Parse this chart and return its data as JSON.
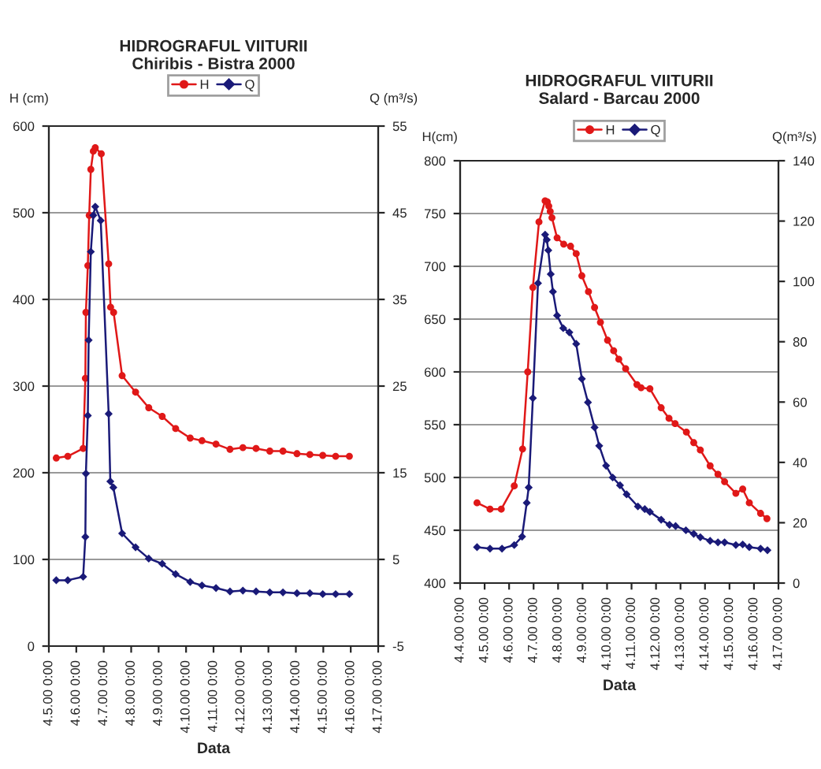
{
  "chart_data": [
    {
      "type": "line",
      "title": "HIDROGRAFUL VIITURII",
      "subtitle": "Chiribis - Bistra 2000",
      "xlabel": "Data",
      "ylabel": "H (cm)",
      "y2label": "Q (m³/s)",
      "xlim": [
        "2000-04-05T00:00",
        "2000-04-17T00:00"
      ],
      "xticks": [
        {
          "value": "2000-04-05T00:00",
          "label": "4.5.00 0:00"
        },
        {
          "value": "2000-04-06T00:00",
          "label": "4.6.00 0:00"
        },
        {
          "value": "2000-04-07T00:00",
          "label": "4.7.00 0:00"
        },
        {
          "value": "2000-04-08T00:00",
          "label": "4.8.00 0:00"
        },
        {
          "value": "2000-04-09T00:00",
          "label": "4.9.00 0:00"
        },
        {
          "value": "2000-04-10T00:00",
          "label": "4.10.00 0:00"
        },
        {
          "value": "2000-04-11T00:00",
          "label": "4.11.00 0:00"
        },
        {
          "value": "2000-04-12T00:00",
          "label": "4.12.00 0:00"
        },
        {
          "value": "2000-04-13T00:00",
          "label": "4.13.00 0:00"
        },
        {
          "value": "2000-04-14T00:00",
          "label": "4.14.00 0:00"
        },
        {
          "value": "2000-04-15T00:00",
          "label": "4.15.00 0:00"
        },
        {
          "value": "2000-04-16T00:00",
          "label": "4.16.00 0:00"
        },
        {
          "value": "2000-04-17T00:00",
          "label": "4.17.00 0:00"
        }
      ],
      "ylim": [
        0,
        600
      ],
      "yticks": [
        0,
        100,
        200,
        300,
        400,
        500,
        600
      ],
      "y2lim": [
        -5,
        55
      ],
      "y2ticks": [
        -5,
        5,
        15,
        25,
        35,
        45,
        55
      ],
      "grid": "y",
      "legend": "top",
      "line_style": "solid",
      "series": [
        {
          "name": "H",
          "color": "#e01818",
          "marker": "circle",
          "x": [
            "2000-04-05T06:29",
            "2000-04-05T16:34",
            "2000-04-06T06:00",
            "2000-04-06T07:55",
            "2000-04-06T08:24",
            "2000-04-06T10:05",
            "2000-04-06T11:17",
            "2000-04-06T12:43",
            "2000-04-06T14:53",
            "2000-04-06T16:34",
            "2000-04-06T21:50",
            "2000-04-07T04:19",
            "2000-04-07T06:00",
            "2000-04-07T08:38",
            "2000-04-07T16:05",
            "2000-04-08T03:50",
            "2000-04-08T15:22",
            "2000-04-09T03:07",
            "2000-04-09T14:53",
            "2000-04-10T03:36",
            "2000-04-10T13:55",
            "2000-04-11T02:10",
            "2000-04-11T14:24",
            "2000-04-12T01:41",
            "2000-04-12T13:12",
            "2000-04-13T01:12",
            "2000-04-13T12:43",
            "2000-04-14T00:58",
            "2000-04-14T12:14",
            "2000-04-14T23:31",
            "2000-04-15T10:48",
            "2000-04-15T22:48"
          ],
          "values": [
            217,
            219,
            228,
            309,
            385,
            439,
            497,
            550,
            571,
            575,
            568,
            441,
            391,
            385,
            312,
            293,
            275,
            265,
            251,
            240,
            237,
            233,
            227,
            229,
            228,
            225,
            225,
            222,
            221,
            220,
            219,
            219
          ]
        },
        {
          "name": "Q",
          "color": "#1a1a78",
          "marker": "diamond",
          "axis": "y2",
          "x": [
            "2000-04-05T06:29",
            "2000-04-05T16:34",
            "2000-04-06T06:00",
            "2000-04-06T07:55",
            "2000-04-06T08:24",
            "2000-04-06T10:05",
            "2000-04-06T10:48",
            "2000-04-06T12:43",
            "2000-04-06T14:53",
            "2000-04-06T16:34",
            "2000-04-06T21:22",
            "2000-04-07T04:19",
            "2000-04-07T05:46",
            "2000-04-07T08:24",
            "2000-04-07T16:05",
            "2000-04-08T03:50",
            "2000-04-08T15:22",
            "2000-04-09T03:07",
            "2000-04-09T14:53",
            "2000-04-10T03:36",
            "2000-04-10T13:55",
            "2000-04-11T02:10",
            "2000-04-11T14:24",
            "2000-04-12T01:41",
            "2000-04-12T13:12",
            "2000-04-13T01:12",
            "2000-04-13T12:43",
            "2000-04-14T00:58",
            "2000-04-14T12:14",
            "2000-04-14T23:31",
            "2000-04-15T10:48",
            "2000-04-15T22:48"
          ],
          "values": [
            2.6,
            2.6,
            3.0,
            7.6,
            14.9,
            21.6,
            30.3,
            40.5,
            44.7,
            45.7,
            44.1,
            21.8,
            14.0,
            13.3,
            8.0,
            6.4,
            5.1,
            4.5,
            3.3,
            2.4,
            2.0,
            1.7,
            1.3,
            1.4,
            1.3,
            1.2,
            1.2,
            1.1,
            1.1,
            1.0,
            1.0,
            1.0
          ]
        }
      ]
    },
    {
      "type": "line",
      "title": "HIDROGRAFUL VIITURII",
      "subtitle": "Salard - Barcau 2000",
      "xlabel": "Data",
      "ylabel": "H(cm)",
      "y2label": "Q(m³/s)",
      "xlim": [
        "2000-04-04T00:00",
        "2000-04-17T00:00"
      ],
      "xticks": [
        {
          "value": "2000-04-04T00:00",
          "label": "4.4.00 0:00"
        },
        {
          "value": "2000-04-05T00:00",
          "label": "4.5.00 0:00"
        },
        {
          "value": "2000-04-06T00:00",
          "label": "4.6.00 0:00"
        },
        {
          "value": "2000-04-07T00:00",
          "label": "4.7.00 0:00"
        },
        {
          "value": "2000-04-08T00:00",
          "label": "4.8.00 0:00"
        },
        {
          "value": "2000-04-09T00:00",
          "label": "4.9.00 0:00"
        },
        {
          "value": "2000-04-10T00:00",
          "label": "4.10.00 0:00"
        },
        {
          "value": "2000-04-11T00:00",
          "label": "4.11.00 0:00"
        },
        {
          "value": "2000-04-12T00:00",
          "label": "4.12.00 0:00"
        },
        {
          "value": "2000-04-13T00:00",
          "label": "4.13.00 0:00"
        },
        {
          "value": "2000-04-14T00:00",
          "label": "4.14.00 0:00"
        },
        {
          "value": "2000-04-15T00:00",
          "label": "4.15.00 0:00"
        },
        {
          "value": "2000-04-16T00:00",
          "label": "4.16.00 0:00"
        },
        {
          "value": "2000-04-17T00:00",
          "label": "4.17.00 0:00"
        }
      ],
      "ylim": [
        400,
        800
      ],
      "yticks": [
        400,
        450,
        500,
        550,
        600,
        650,
        700,
        750,
        800
      ],
      "y2lim": [
        0,
        140
      ],
      "y2ticks": [
        0,
        20,
        40,
        60,
        80,
        100,
        120,
        140
      ],
      "grid": "y",
      "legend": "top",
      "line_style": "solid",
      "series": [
        {
          "name": "H",
          "color": "#e01818",
          "marker": "circle",
          "x": [
            "2000-04-04T16:34",
            "2000-04-05T05:17",
            "2000-04-05T16:19",
            "2000-04-06T05:02",
            "2000-04-06T13:12",
            "2000-04-06T18:14",
            "2000-04-06T23:17",
            "2000-04-07T05:17",
            "2000-04-07T11:17",
            "2000-04-07T13:26",
            "2000-04-07T14:53",
            "2000-04-07T16:19",
            "2000-04-07T18:00",
            "2000-04-07T23:02",
            "2000-04-08T05:31",
            "2000-04-08T12:14",
            "2000-04-08T17:46",
            "2000-04-08T23:17",
            "2000-04-09T05:46",
            "2000-04-09T11:46",
            "2000-04-09T17:31",
            "2000-04-10T00:29",
            "2000-04-10T06:29",
            "2000-04-10T11:31",
            "2000-04-10T18:14",
            "2000-04-11T05:17",
            "2000-04-11T09:22",
            "2000-04-11T18:00",
            "2000-04-12T05:02",
            "2000-04-12T12:43",
            "2000-04-12T18:43",
            "2000-04-13T05:46",
            "2000-04-13T12:58",
            "2000-04-13T19:26",
            "2000-04-14T05:02",
            "2000-04-14T12:43",
            "2000-04-14T19:12",
            "2000-04-15T06:14",
            "2000-04-15T12:58",
            "2000-04-15T19:26",
            "2000-04-16T06:29",
            "2000-04-16T12:43"
          ],
          "values": [
            476,
            470,
            470,
            492,
            527,
            600,
            680,
            742,
            762,
            761,
            757,
            752,
            746,
            727,
            721,
            719,
            712,
            691,
            676,
            661,
            647,
            630,
            620,
            612,
            603,
            588,
            585,
            584,
            566,
            556,
            551,
            543,
            533,
            526,
            511,
            503,
            496,
            485,
            489,
            476,
            466,
            461
          ]
        },
        {
          "name": "Q",
          "color": "#1a1a78",
          "marker": "diamond",
          "axis": "y2",
          "x": [
            "2000-04-04T16:34",
            "2000-04-05T05:17",
            "2000-04-05T17:02",
            "2000-04-06T05:02",
            "2000-04-06T12:43",
            "2000-04-06T17:17",
            "2000-04-06T19:12",
            "2000-04-06T23:17",
            "2000-04-07T04:19",
            "2000-04-07T11:17",
            "2000-04-07T12:58",
            "2000-04-07T14:24",
            "2000-04-07T16:48",
            "2000-04-07T18:58",
            "2000-04-07T23:02",
            "2000-04-08T05:02",
            "2000-04-08T11:02",
            "2000-04-08T17:46",
            "2000-04-08T23:17",
            "2000-04-09T05:17",
            "2000-04-09T11:46",
            "2000-04-09T16:19",
            "2000-04-09T23:02",
            "2000-04-10T05:31",
            "2000-04-10T12:43",
            "2000-04-10T19:12",
            "2000-04-11T06:14",
            "2000-04-11T12:58",
            "2000-04-11T18:00",
            "2000-04-12T05:02",
            "2000-04-12T13:12",
            "2000-04-12T19:12",
            "2000-04-13T05:17",
            "2000-04-13T12:58",
            "2000-04-13T19:26",
            "2000-04-14T05:02",
            "2000-04-14T12:43",
            "2000-04-14T19:12",
            "2000-04-15T06:14",
            "2000-04-15T12:58",
            "2000-04-15T19:26",
            "2000-04-16T06:29",
            "2000-04-16T13:12"
          ],
          "values": [
            11.9,
            11.4,
            11.4,
            12.6,
            15.4,
            26.6,
            31.7,
            61.3,
            99.4,
            115.5,
            113.8,
            110.3,
            102.4,
            96.6,
            88.7,
            84.5,
            83.1,
            79.3,
            67.7,
            59.9,
            51.6,
            45.5,
            38.9,
            35.0,
            32.4,
            29.4,
            25.4,
            24.5,
            23.6,
            21.0,
            19.3,
            18.9,
            17.5,
            16.3,
            15.2,
            14.0,
            13.5,
            13.5,
            12.6,
            12.8,
            11.9,
            11.4,
            10.9
          ]
        }
      ]
    }
  ]
}
